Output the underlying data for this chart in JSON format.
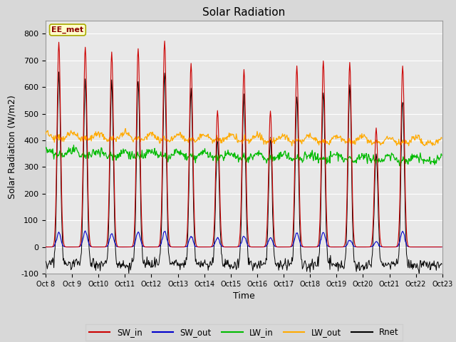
{
  "title": "Solar Radiation",
  "ylabel": "Solar Radiation (W/m2)",
  "xlabel": "Time",
  "ylim": [
    -100,
    850
  ],
  "yticks": [
    -100,
    0,
    100,
    200,
    300,
    400,
    500,
    600,
    700,
    800
  ],
  "n_days": 15,
  "start_day": 8,
  "annotation_text": "EE_met",
  "fig_bg_color": "#d8d8d8",
  "plot_bg_color": "#e8e8e8",
  "colors": {
    "SW_in": "#cc0000",
    "SW_out": "#0000cc",
    "LW_in": "#00bb00",
    "LW_out": "#ffaa00",
    "Rnet": "#000000"
  },
  "SW_in_peaks": [
    770,
    750,
    730,
    745,
    775,
    690,
    510,
    665,
    510,
    680,
    700,
    690,
    445,
    680,
    0
  ],
  "SW_out_peaks": [
    55,
    60,
    50,
    55,
    60,
    40,
    35,
    40,
    35,
    55,
    55,
    25,
    20,
    60,
    0
  ],
  "LW_in_base": 350,
  "LW_out_base": 412,
  "Rnet_night": -75,
  "tick_fontsize": 7,
  "label_fontsize": 9,
  "title_fontsize": 11
}
